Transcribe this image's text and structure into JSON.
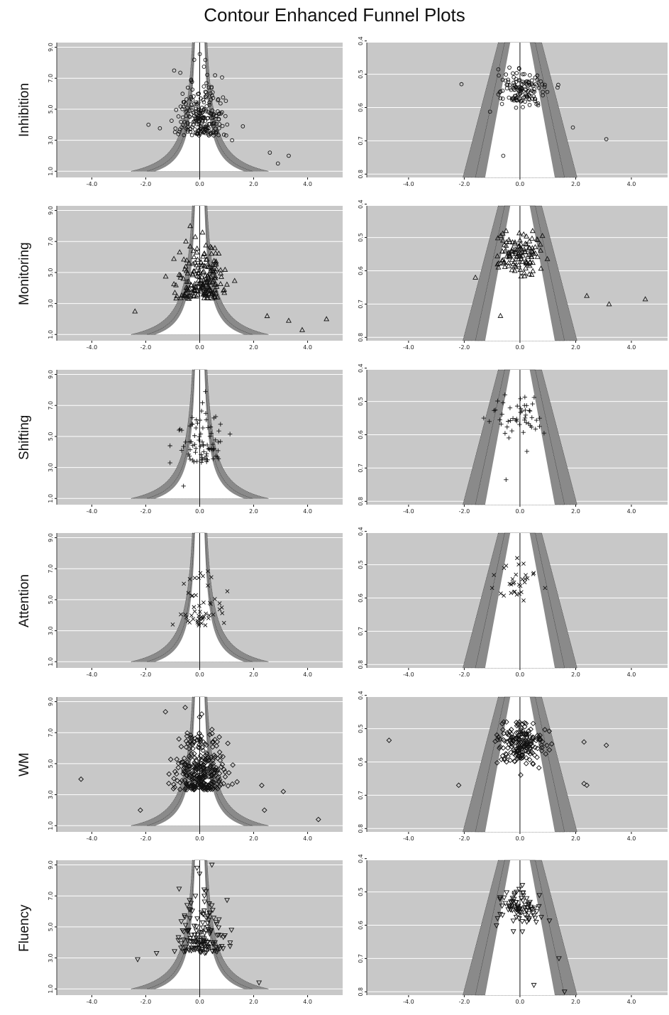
{
  "title": "Contour Enhanced Funnel Plots",
  "colors": {
    "panel_bg": "#c8c8c8",
    "contour_band": "#8a8a8a",
    "inner": "#ffffff",
    "grid": "#ffffff",
    "ink": "#111111"
  },
  "chart_data": {
    "type": "scatter",
    "rows": [
      {
        "label": "Inhibition",
        "marker": "circle",
        "n": 230,
        "left_outliers": [
          [
            -1.9,
            4.0
          ],
          [
            2.9,
            1.5
          ],
          [
            3.3,
            2.0
          ],
          [
            2.6,
            2.2
          ],
          [
            1.6,
            3.9
          ],
          [
            1.2,
            3.0
          ]
        ],
        "right_outliers": [
          [
            -2.1,
            0.53
          ],
          [
            3.1,
            0.695
          ],
          [
            -0.6,
            0.745
          ],
          [
            1.9,
            0.66
          ],
          [
            1.35,
            0.54
          ]
        ]
      },
      {
        "label": "Monitoring",
        "marker": "triangle",
        "n": 200,
        "left_outliers": [
          [
            2.5,
            2.2
          ],
          [
            3.3,
            1.9
          ],
          [
            3.8,
            1.3
          ],
          [
            4.7,
            2.0
          ],
          [
            -2.4,
            2.5
          ]
        ],
        "right_outliers": [
          [
            2.4,
            0.675
          ],
          [
            3.2,
            0.7
          ],
          [
            4.5,
            0.685
          ],
          [
            -1.6,
            0.62
          ],
          [
            -0.7,
            0.735
          ]
        ]
      },
      {
        "label": "Shifting",
        "marker": "plus",
        "n": 80,
        "left_outliers": [
          [
            -1.1,
            4.4
          ],
          [
            -1.1,
            3.3
          ],
          [
            -0.6,
            1.8
          ]
        ],
        "right_outliers": [
          [
            -0.5,
            0.735
          ],
          [
            -1.3,
            0.55
          ],
          [
            0.25,
            0.65
          ]
        ]
      },
      {
        "label": "Attention",
        "marker": "x",
        "n": 50,
        "left_outliers": [
          [
            -1.0,
            3.4
          ],
          [
            0.9,
            3.5
          ]
        ],
        "right_outliers": [
          [
            -1.0,
            0.57
          ],
          [
            0.9,
            0.57
          ]
        ]
      },
      {
        "label": "WM",
        "marker": "diamond",
        "n": 320,
        "left_outliers": [
          [
            -4.4,
            4.0
          ],
          [
            -2.2,
            2.0
          ],
          [
            4.4,
            1.4
          ],
          [
            3.1,
            3.2
          ],
          [
            2.4,
            2.0
          ],
          [
            2.3,
            3.6
          ]
        ],
        "right_outliers": [
          [
            -4.7,
            0.535
          ],
          [
            -2.2,
            0.67
          ],
          [
            2.3,
            0.54
          ],
          [
            3.1,
            0.55
          ],
          [
            2.3,
            0.665
          ],
          [
            2.4,
            0.67
          ]
        ]
      },
      {
        "label": "Fluency",
        "marker": "triangle-down",
        "n": 150,
        "left_outliers": [
          [
            -2.3,
            2.9
          ],
          [
            -1.6,
            3.3
          ],
          [
            2.2,
            1.4
          ],
          [
            -0.1,
            8.8
          ]
        ],
        "right_outliers": [
          [
            0.5,
            0.78
          ],
          [
            1.6,
            0.8
          ],
          [
            1.4,
            0.7
          ]
        ]
      }
    ],
    "left_panel": {
      "x_ticks": [
        "-4.0",
        "-2.0",
        "0.0",
        "2.0",
        "4.0"
      ],
      "y_ticks": [
        "1.0",
        "3.0",
        "5.0",
        "7.0",
        "9.0"
      ],
      "xlim": [
        -5.3,
        5.3
      ],
      "ylim": [
        0.6,
        9.3
      ]
    },
    "right_panel": {
      "x_ticks": [
        "-4.0",
        "-2.0",
        "0.0",
        "2.0",
        "4.0"
      ],
      "y_ticks": [
        "0.4",
        "0.5",
        "0.6",
        "0.7",
        "0.8"
      ],
      "xlim": [
        -5.5,
        5.3
      ],
      "ylim": [
        0.405,
        0.81
      ]
    },
    "grid": true
  }
}
